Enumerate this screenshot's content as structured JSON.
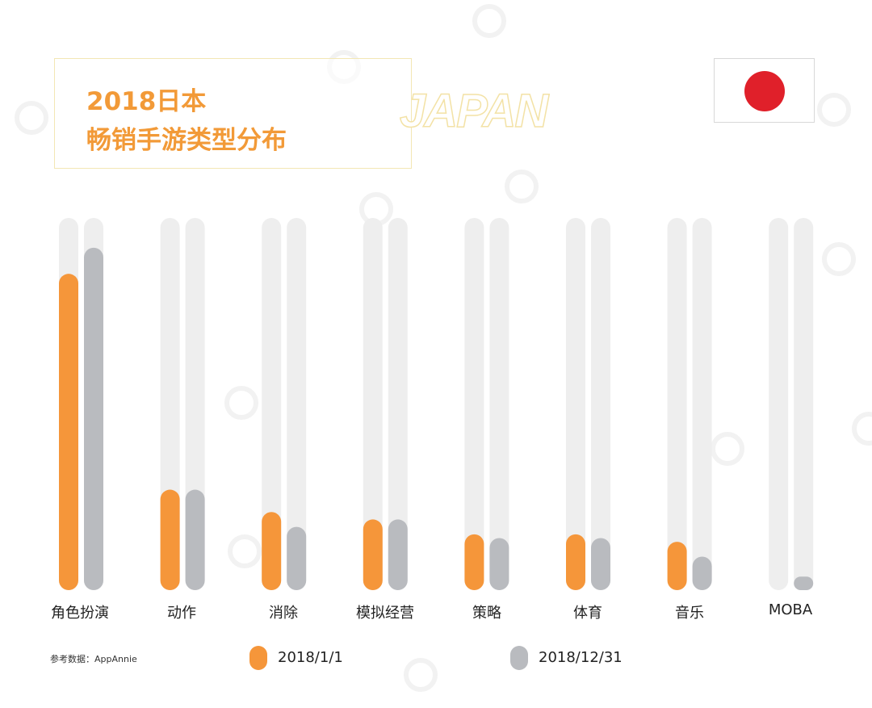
{
  "header": {
    "title_line1": "2018日本",
    "title_line2": "畅销手游类型分布",
    "country_word": "JAPAN"
  },
  "flag": {
    "country": "Japan",
    "disc_color": "#e0202a"
  },
  "colors": {
    "series_2018_1_1": "#f5963a",
    "series_2018_12_31": "#b9bbbf",
    "track": "#eeeeee"
  },
  "chart_data": {
    "type": "bar",
    "categories": [
      "角色扮演",
      "动作",
      "消除",
      "模拟经营",
      "策略",
      "体育",
      "音乐",
      "MOBA"
    ],
    "series": [
      {
        "name": "2018/1/1",
        "values": [
          85,
          27,
          21,
          19,
          15,
          15,
          13,
          0
        ]
      },
      {
        "name": "2018/12/31",
        "values": [
          92,
          27,
          17,
          19,
          14,
          14,
          9,
          3
        ]
      }
    ],
    "ylim": [
      0,
      100
    ],
    "grid": false,
    "legend_position": "bottom"
  },
  "footer": {
    "source": "参考数据：AppAnnie"
  }
}
